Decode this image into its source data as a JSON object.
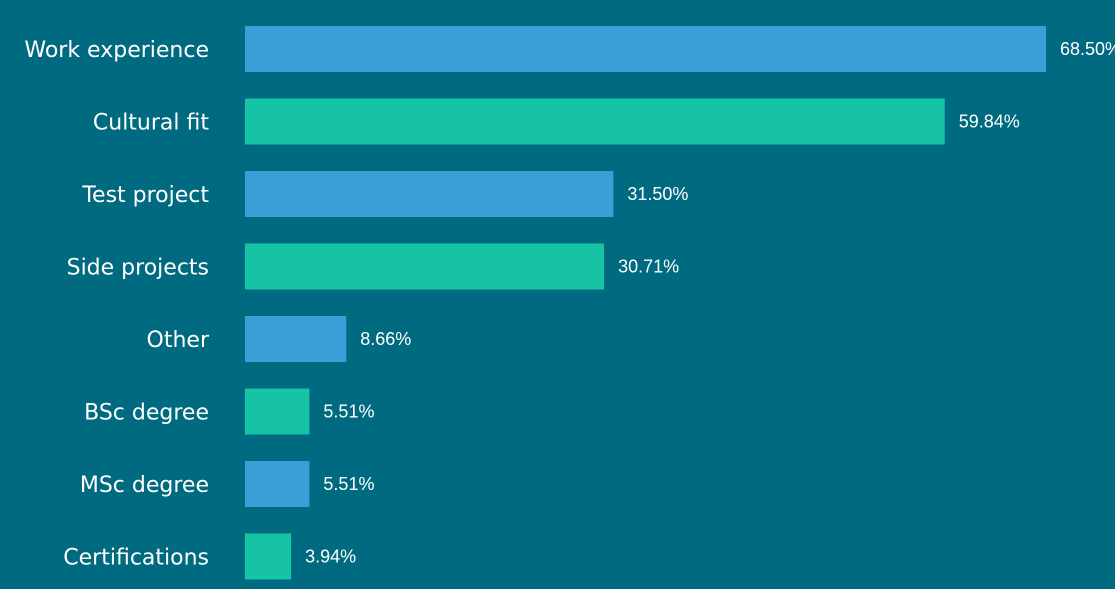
{
  "chart_data": {
    "type": "bar",
    "orientation": "horizontal",
    "title": "",
    "xlabel": "",
    "ylabel": "",
    "categories": [
      "Work experience",
      "Cultural fit",
      "Test project",
      "Side projects",
      "Other",
      "BSc degree",
      "MSc degree",
      "Certifications"
    ],
    "values": [
      68.5,
      59.84,
      31.5,
      30.71,
      8.66,
      5.51,
      5.51,
      3.94
    ],
    "value_labels": [
      "68.50%",
      "59.84%",
      "31.50%",
      "30.71%",
      "8.66%",
      "5.51%",
      "5.51%",
      "3.94%"
    ],
    "unit": "%",
    "xlim": [
      0,
      68.5
    ],
    "grid": false,
    "legend": "none",
    "colors": {
      "background": "#006b80",
      "bar_alternating": [
        "#3a9fd6",
        "#16c4a5"
      ],
      "text": "#ffffff"
    }
  }
}
